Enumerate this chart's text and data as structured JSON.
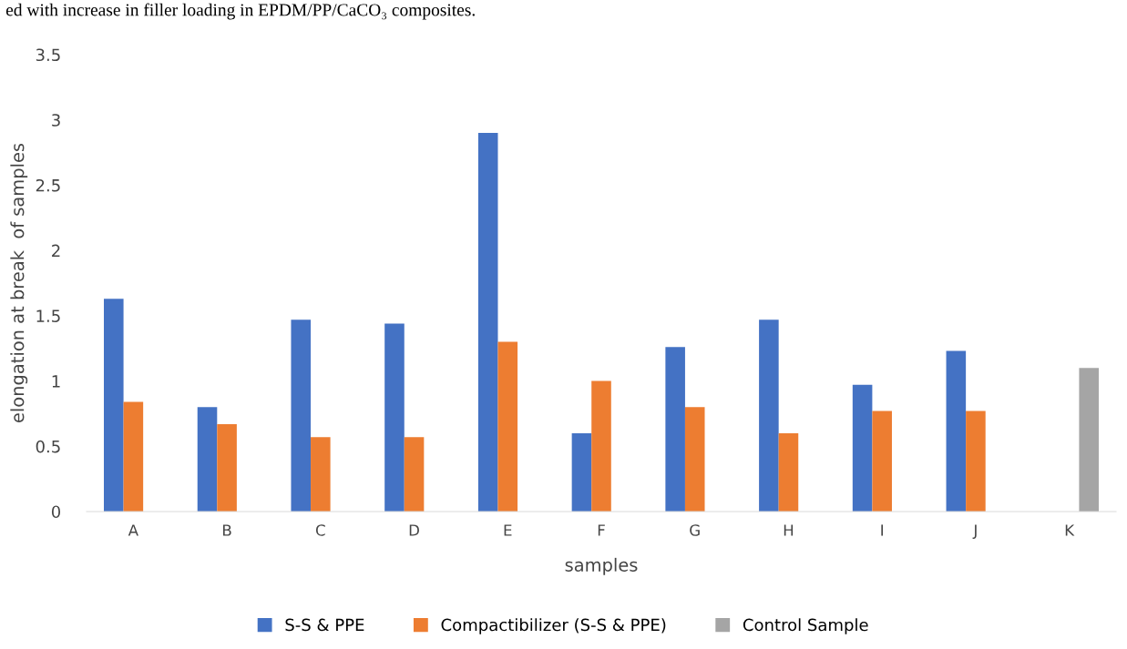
{
  "chart_data": {
    "type": "bar",
    "annotations": [
      "ed with increase in filler loading in EPDM/PP/CaCO₃ composites."
    ],
    "xlabel": "samples",
    "ylabel": "elongation at break  of samples",
    "categories": [
      "A",
      "B",
      "C",
      "D",
      "E",
      "F",
      "G",
      "H",
      "I",
      "J",
      "K"
    ],
    "series": [
      {
        "name": "S-S & PPE",
        "color": "#4472c4",
        "values": [
          1.63,
          0.8,
          1.47,
          1.44,
          2.9,
          0.6,
          1.26,
          1.47,
          0.97,
          1.23,
          null
        ]
      },
      {
        "name": "Compactibilizer (S-S & PPE)",
        "color": "#ed7d31",
        "values": [
          0.84,
          0.67,
          0.57,
          0.57,
          1.3,
          1.0,
          0.8,
          0.6,
          0.77,
          0.77,
          null
        ]
      },
      {
        "name": "Control Sample",
        "color": "#a5a5a5",
        "values": [
          null,
          null,
          null,
          null,
          null,
          null,
          null,
          null,
          null,
          null,
          1.1
        ]
      }
    ],
    "ylim": [
      0,
      3.5
    ],
    "yticks": [
      0,
      0.5,
      1,
      1.5,
      2,
      2.5,
      3,
      3.5
    ],
    "grid": false,
    "legend": "bottom"
  }
}
